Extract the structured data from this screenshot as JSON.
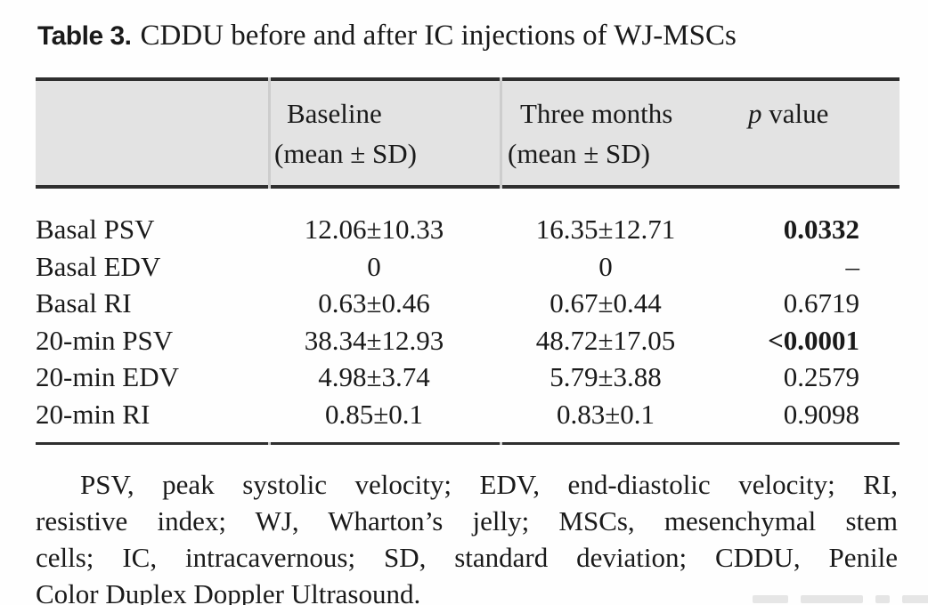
{
  "title": {
    "label": "Table 3.",
    "text": "CDDU before and after IC injections of WJ-MSCs"
  },
  "table": {
    "headers": {
      "baseline_line1": "Baseline",
      "baseline_line2": "(mean ± SD)",
      "three_months_line1": "Three months",
      "three_months_line2": "(mean ± SD)",
      "p_symbol": "p",
      "p_rest": " value"
    },
    "rows": [
      {
        "label": "Basal PSV",
        "baseline": "12.06±10.33",
        "three_months": "16.35±12.71",
        "p": "0.0332"
      },
      {
        "label": "Basal EDV",
        "baseline": "0",
        "three_months": "0",
        "p": "–"
      },
      {
        "label": "Basal RI",
        "baseline": "0.63±0.46",
        "three_months": "0.67±0.44",
        "p": "0.6719"
      },
      {
        "label": "20-min PSV",
        "baseline": "38.34±12.93",
        "three_months": "48.72±17.05",
        "p": "<0.0001"
      },
      {
        "label": "20-min EDV",
        "baseline": "4.98±3.74",
        "three_months": "5.79±3.88",
        "p": "0.2579"
      },
      {
        "label": "20-min RI",
        "baseline": "0.85±0.1",
        "three_months": "0.83±0.1",
        "p": "0.9098"
      }
    ]
  },
  "footnote": {
    "lines": [
      "PSV, peak systolic velocity; EDV, end-diastolic velocity; RI,",
      "resistive index; WJ, Wharton’s jelly; MSCs, mesenchymal stem",
      "cells; IC, intracavernous; SD, standard deviation; CDDU, Penile",
      "Color Duplex Doppler Ultrasound."
    ]
  },
  "colors": {
    "header_bg": "#e3e3e3",
    "rule": "#2f2f2f",
    "text": "#1a1a1a",
    "bold_p_accent": "#1a1a1a"
  }
}
